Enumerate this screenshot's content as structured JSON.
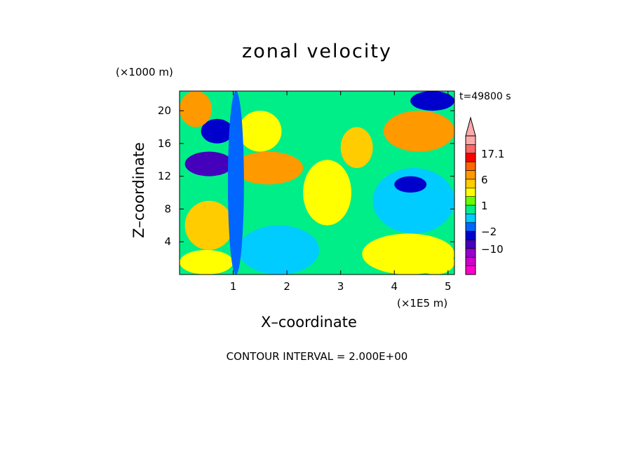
{
  "figure": {
    "title": "zonal velocity",
    "z_unit": "(×1000 m)",
    "timestamp": "t=49800 s",
    "x_unit": "(×1E5 m)",
    "xlabel": "X–coordinate",
    "ylabel": "Z–coordinate",
    "contour_note": "CONTOUR INTERVAL = 2.000E+00"
  },
  "chart_data": {
    "type": "heatmap",
    "title": "zonal velocity",
    "xlabel": "X-coordinate",
    "ylabel": "Z-coordinate",
    "x_unit": "(×1E5 m)",
    "z_unit": "(×1000 m)",
    "xlim": [
      0,
      5.12
    ],
    "ylim": [
      0,
      22.4
    ],
    "xticks": [
      1,
      2,
      3,
      4,
      5
    ],
    "yticks": [
      4,
      8,
      12,
      16,
      20
    ],
    "contour_interval": 2.0,
    "colorbar": {
      "levels": [
        -18,
        -14,
        -10,
        -6,
        -2,
        -1,
        0,
        1,
        2,
        4,
        6,
        8,
        12,
        17.1
      ],
      "colors": [
        "#ff00cc",
        "#cc00cc",
        "#9900cc",
        "#4400bb",
        "#0000cc",
        "#0066ff",
        "#00ccff",
        "#00ee88",
        "#66ff00",
        "#ffff00",
        "#ffcc00",
        "#ff9900",
        "#ff6600",
        "#ff0000",
        "#ff6666",
        "#ffaaaa"
      ],
      "labels": [
        "17.1",
        "6",
        "1",
        "−2",
        "−10"
      ],
      "extend_max": true
    },
    "field_regions": [
      {
        "x": [
          0.0,
          5.12
        ],
        "z": [
          0,
          22.4
        ],
        "value": 0
      },
      {
        "x": [
          0.0,
          1.0
        ],
        "z": [
          0,
          3
        ],
        "value": 2
      },
      {
        "x": [
          0.1,
          1.0
        ],
        "z": [
          3,
          9
        ],
        "value": 5
      },
      {
        "x": [
          0.1,
          1.0
        ],
        "z": [
          12,
          15
        ],
        "value": -8
      },
      {
        "x": [
          0.4,
          1.0
        ],
        "z": [
          16,
          19
        ],
        "value": -6
      },
      {
        "x": [
          0.0,
          0.6
        ],
        "z": [
          18,
          22.4
        ],
        "value": 6
      },
      {
        "x": [
          1.0,
          2.3
        ],
        "z": [
          11,
          15
        ],
        "value": 6
      },
      {
        "x": [
          1.1,
          1.9
        ],
        "z": [
          15,
          20
        ],
        "value": 3
      },
      {
        "x": [
          2.3,
          3.2
        ],
        "z": [
          6,
          14
        ],
        "value": 2
      },
      {
        "x": [
          3.0,
          3.6
        ],
        "z": [
          13,
          18
        ],
        "value": 4
      },
      {
        "x": [
          3.6,
          5.12
        ],
        "z": [
          5,
          13
        ],
        "value": -1
      },
      {
        "x": [
          4.0,
          4.6
        ],
        "z": [
          10,
          12
        ],
        "value": -4
      },
      {
        "x": [
          3.8,
          5.12
        ],
        "z": [
          15,
          20
        ],
        "value": 6
      },
      {
        "x": [
          4.3,
          5.12
        ],
        "z": [
          20,
          22.4
        ],
        "value": -4
      },
      {
        "x": [
          3.4,
          5.12
        ],
        "z": [
          0,
          5
        ],
        "value": 2
      },
      {
        "x": [
          4.4,
          5.12
        ],
        "z": [
          0,
          3
        ],
        "value": 3
      },
      {
        "x": [
          1.1,
          2.6
        ],
        "z": [
          0,
          6
        ],
        "value": -1
      },
      {
        "x": [
          0.9,
          1.2
        ],
        "z": [
          0,
          22.4
        ],
        "value": -2
      }
    ]
  }
}
